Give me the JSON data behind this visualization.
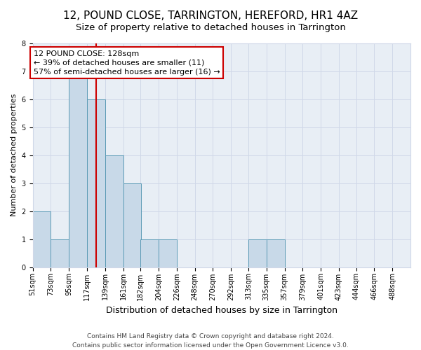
{
  "title1": "12, POUND CLOSE, TARRINGTON, HEREFORD, HR1 4AZ",
  "title2": "Size of property relative to detached houses in Tarrington",
  "xlabel": "Distribution of detached houses by size in Tarrington",
  "ylabel": "Number of detached properties",
  "bins": [
    51,
    73,
    95,
    117,
    139,
    161,
    182,
    204,
    226,
    248,
    270,
    292,
    313,
    335,
    357,
    379,
    401,
    423,
    444,
    466,
    488
  ],
  "counts": [
    2,
    1,
    7,
    6,
    4,
    3,
    1,
    1,
    0,
    0,
    0,
    0,
    1,
    1,
    0,
    0,
    0,
    0,
    0,
    0,
    0
  ],
  "bar_color": "#c8d9e8",
  "bar_edge_color": "#5a9ab5",
  "ref_line_value": 128,
  "ref_line_color": "#cc0000",
  "annotation_line1": "12 POUND CLOSE: 128sqm",
  "annotation_line2": "← 39% of detached houses are smaller (11)",
  "annotation_line3": "57% of semi-detached houses are larger (16) →",
  "annotation_box_color": "#ffffff",
  "annotation_box_edge": "#cc0000",
  "ylim": [
    0,
    8
  ],
  "yticks": [
    0,
    1,
    2,
    3,
    4,
    5,
    6,
    7,
    8
  ],
  "grid_color": "#d0d8e8",
  "bg_color": "#e8eef5",
  "footer1": "Contains HM Land Registry data © Crown copyright and database right 2024.",
  "footer2": "Contains public sector information licensed under the Open Government Licence v3.0.",
  "title1_fontsize": 11,
  "title2_fontsize": 9.5,
  "xlabel_fontsize": 9,
  "ylabel_fontsize": 8,
  "tick_fontsize": 7,
  "annotation_fontsize": 8,
  "footer_fontsize": 6.5
}
